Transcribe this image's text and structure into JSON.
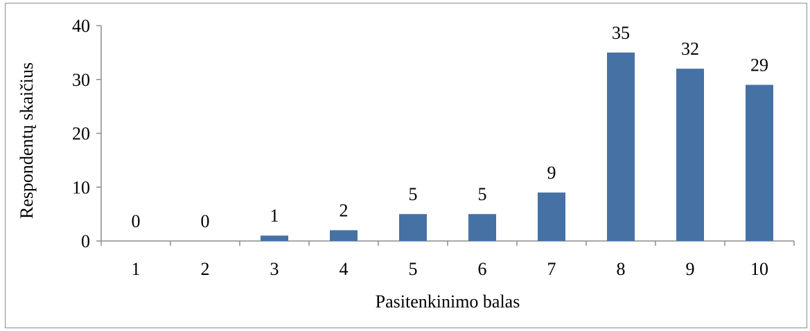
{
  "chart_data": {
    "type": "bar",
    "title": "",
    "xlabel": "Pasitenkinimo balas",
    "ylabel": "Respondentų skaičius",
    "categories": [
      "1",
      "2",
      "3",
      "4",
      "5",
      "6",
      "7",
      "8",
      "9",
      "10"
    ],
    "values": [
      0,
      0,
      1,
      2,
      5,
      5,
      9,
      35,
      32,
      29
    ],
    "data_labels": [
      "0",
      "0",
      "1",
      "2",
      "5",
      "5",
      "9",
      "35",
      "32",
      "29"
    ],
    "ylim": [
      0,
      40
    ],
    "yticks": [
      "0",
      "10",
      "20",
      "30",
      "40"
    ],
    "grid": false,
    "legend": "none",
    "bar_color": "#4671a5"
  }
}
